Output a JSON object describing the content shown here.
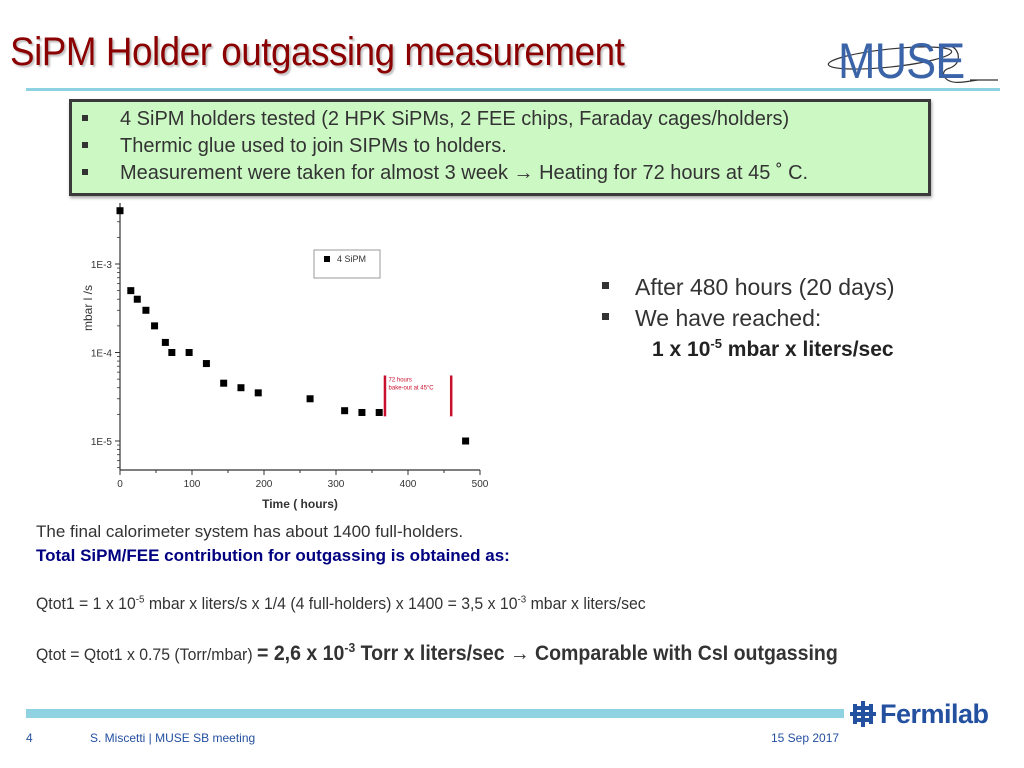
{
  "slide": {
    "title": "SiPM Holder outgassing measurement",
    "logo_right": "MUSE",
    "colors": {
      "title": "#8b0000",
      "rule": "#8fd2e2",
      "greenbox_bg": "#ccf8c4",
      "emphasis_blue": "#000080",
      "fermilab_blue": "#2450a0",
      "annotation_red": "#c8102e"
    }
  },
  "greenbox": {
    "items": [
      "4 SiPM holders tested (2 HPK SiPMs, 2 FEE chips, Faraday cages/holders)",
      "Thermic glue used to join SIPMs to holders.",
      "Measurement were taken for almost 3 week → Heating for 72 hours at 45 ˚ C."
    ]
  },
  "right_notes": {
    "bullet1": "After 480 hours (20 days)",
    "bullet2": "We have reached:",
    "result_prefix": "1 x 10",
    "result_exp": "-5",
    "result_suffix": " mbar x liters/sec"
  },
  "body": {
    "line1": "The final calorimeter system has about 1400 full-holders.",
    "line2": "Total SiPM/FEE contribution for outgassing is obtained as:",
    "qtot1": {
      "a": "Qtot1 = 1 x 10",
      "a_exp": "-5",
      "b": " mbar x liters/s x 1/4 (4 full-holders) x 1400  = 3,5 x 10",
      "b_exp": "-3",
      "c": " mbar x liters/sec"
    },
    "qtot": {
      "a": "Qtot = Qtot1 x 0.75 (Torr/mbar) ",
      "b": "= 2,6 x 10",
      "b_exp": "-3",
      "c": " Torr x liters/sec → Comparable with CsI outgassing"
    }
  },
  "footer": {
    "page": "4",
    "author": "S. Miscetti | MUSE SB meeting",
    "date": "15 Sep 2017",
    "lab": "Fermilab"
  },
  "chart_data": {
    "type": "scatter",
    "title": "",
    "xlabel": "Time ( hours)",
    "ylabel": "mbar l /s",
    "xlim": [
      0,
      500
    ],
    "ylim": [
      5e-06,
      0.005
    ],
    "yscale": "log",
    "x_ticks": [
      0,
      100,
      200,
      300,
      400,
      500
    ],
    "y_ticks": [
      "1E-5",
      "1E-4",
      "1E-3"
    ],
    "grid": false,
    "legend": {
      "position": "top-right-center",
      "entries": [
        "4 SiPM"
      ]
    },
    "series": [
      {
        "name": "4 SiPM",
        "marker": "square",
        "x": [
          0,
          15,
          24,
          36,
          48,
          63,
          72,
          96,
          120,
          144,
          168,
          192,
          264,
          312,
          336,
          360,
          480
        ],
        "y": [
          0.004,
          0.0005,
          0.0004,
          0.0003,
          0.0002,
          0.00013,
          0.0001,
          0.0001,
          7.5e-05,
          4.5e-05,
          4e-05,
          3.5e-05,
          3e-05,
          2.2e-05,
          2.1e-05,
          2.1e-05,
          1e-05
        ]
      }
    ],
    "annotations": [
      {
        "type": "vline",
        "x": 368,
        "color": "#c8102e"
      },
      {
        "type": "vline",
        "x": 460,
        "color": "#c8102e"
      },
      {
        "type": "text",
        "text": "72 hours",
        "x": 373
      },
      {
        "type": "text",
        "text": "bake-out at 45°C",
        "x": 373
      }
    ]
  }
}
